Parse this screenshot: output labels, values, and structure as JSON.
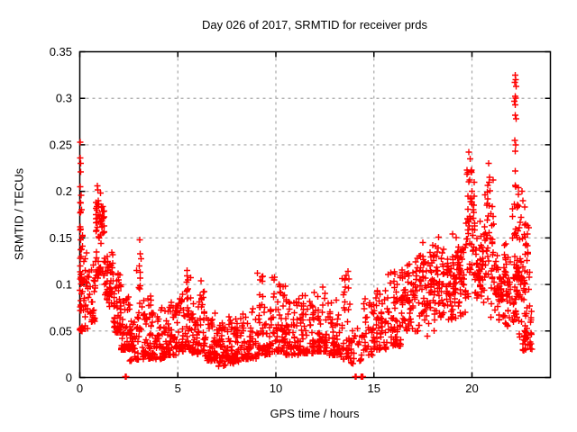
{
  "chart_data": {
    "type": "scatter",
    "title": "Day 026 of 2017, SRMTID for receiver prds",
    "xlabel": "GPS time / hours",
    "ylabel": "SRMTID / TECUs",
    "xlim": [
      0,
      24
    ],
    "ylim": [
      0,
      0.35
    ],
    "xticks": [
      0,
      5,
      10,
      15,
      20
    ],
    "xtick_labels": [
      "0",
      "5",
      "10",
      "15",
      "20"
    ],
    "yticks": [
      0,
      0.05,
      0.1,
      0.15,
      0.2,
      0.25,
      0.3,
      0.35
    ],
    "ytick_labels": [
      "0",
      "0.05",
      "0.1",
      "0.15",
      "0.2",
      "0.25",
      "0.3",
      "0.35"
    ],
    "grid": true,
    "legend_position": "none",
    "marker": {
      "shape": "plus",
      "color": "#ff0000",
      "size": 7
    },
    "colors": {
      "axis": "#000000",
      "grid": "#a8a8a8",
      "background": "#ffffff",
      "text": "#000000"
    },
    "series_name": "SRMTID",
    "point_summary_bins": [
      [
        0.0,
        0.15,
        25,
        0.045,
        0.21,
        "full"
      ],
      [
        0.0,
        0.12,
        14,
        0.05,
        0.115,
        "low"
      ],
      [
        0.15,
        0.45,
        22,
        0.05,
        0.145,
        "low"
      ],
      [
        0.45,
        0.8,
        28,
        0.06,
        0.155,
        "low"
      ],
      [
        0.8,
        1.25,
        42,
        0.13,
        0.205,
        "mid"
      ],
      [
        0.8,
        1.25,
        22,
        0.095,
        0.135,
        "mid"
      ],
      [
        1.25,
        1.7,
        45,
        0.07,
        0.138,
        "mid"
      ],
      [
        1.7,
        2.1,
        48,
        0.048,
        0.112,
        "low"
      ],
      [
        2.1,
        2.55,
        45,
        0.03,
        0.088,
        "low"
      ],
      [
        2.55,
        3.0,
        42,
        0.018,
        0.065,
        "low"
      ],
      [
        3.0,
        3.14,
        10,
        0.04,
        0.148,
        "full"
      ],
      [
        3.14,
        3.7,
        52,
        0.02,
        0.092,
        "low"
      ],
      [
        3.7,
        4.35,
        58,
        0.02,
        0.078,
        "low"
      ],
      [
        4.35,
        5.0,
        60,
        0.024,
        0.082,
        "low"
      ],
      [
        5.0,
        5.3,
        28,
        0.028,
        0.09,
        "low"
      ],
      [
        5.3,
        5.65,
        34,
        0.03,
        0.112,
        "low"
      ],
      [
        5.65,
        6.05,
        38,
        0.025,
        0.08,
        "low"
      ],
      [
        6.05,
        6.35,
        28,
        0.028,
        0.1,
        "low"
      ],
      [
        6.35,
        7.0,
        55,
        0.018,
        0.07,
        "low"
      ],
      [
        7.0,
        7.6,
        50,
        0.012,
        0.06,
        "low"
      ],
      [
        7.6,
        8.2,
        52,
        0.015,
        0.066,
        "low"
      ],
      [
        8.2,
        9.0,
        62,
        0.02,
        0.08,
        "low"
      ],
      [
        9.0,
        9.45,
        38,
        0.024,
        0.112,
        "low"
      ],
      [
        9.45,
        9.8,
        28,
        0.025,
        0.08,
        "low"
      ],
      [
        9.8,
        10.5,
        58,
        0.028,
        0.108,
        "low"
      ],
      [
        10.5,
        11.2,
        58,
        0.024,
        0.085,
        "low"
      ],
      [
        11.2,
        11.9,
        58,
        0.026,
        0.09,
        "low"
      ],
      [
        11.9,
        12.6,
        58,
        0.028,
        0.098,
        "low"
      ],
      [
        12.6,
        13.3,
        52,
        0.024,
        0.085,
        "low"
      ],
      [
        13.3,
        13.8,
        38,
        0.02,
        0.112,
        "low"
      ],
      [
        13.8,
        14.35,
        22,
        0.015,
        0.06,
        "low"
      ],
      [
        14.35,
        15.0,
        38,
        0.024,
        0.092,
        "low"
      ],
      [
        15.0,
        15.7,
        52,
        0.03,
        0.1,
        "low"
      ],
      [
        15.7,
        16.4,
        56,
        0.034,
        0.115,
        "low"
      ],
      [
        16.4,
        17.1,
        58,
        0.04,
        0.122,
        "mid"
      ],
      [
        17.1,
        17.8,
        58,
        0.04,
        0.145,
        "mid"
      ],
      [
        17.8,
        18.5,
        62,
        0.045,
        0.15,
        "mid"
      ],
      [
        18.5,
        19.2,
        62,
        0.05,
        0.155,
        "mid"
      ],
      [
        19.2,
        19.7,
        48,
        0.06,
        0.16,
        "mid"
      ],
      [
        19.7,
        20.15,
        52,
        0.075,
        0.235,
        "mid"
      ],
      [
        20.15,
        20.6,
        48,
        0.06,
        0.17,
        "mid"
      ],
      [
        20.6,
        21.1,
        48,
        0.06,
        0.225,
        "mid"
      ],
      [
        21.1,
        21.6,
        44,
        0.05,
        0.14,
        "mid"
      ],
      [
        21.6,
        22.0,
        38,
        0.04,
        0.15,
        "mid"
      ],
      [
        22.05,
        22.4,
        30,
        0.055,
        0.21,
        "full"
      ],
      [
        22.1,
        22.35,
        26,
        0.05,
        0.16,
        "mid"
      ],
      [
        22.4,
        22.95,
        55,
        0.035,
        0.185,
        "mid"
      ],
      [
        22.55,
        22.85,
        18,
        0.028,
        0.06,
        "low"
      ],
      [
        22.95,
        23.1,
        8,
        0.03,
        0.075,
        "low"
      ]
    ],
    "feature_points": [
      [
        0.02,
        0.253
      ],
      [
        0.03,
        0.236
      ],
      [
        0.05,
        0.23
      ],
      [
        0.04,
        0.221
      ],
      [
        0.02,
        0.205
      ],
      [
        0.06,
        0.196
      ],
      [
        0.03,
        0.188
      ],
      [
        0.05,
        0.178
      ],
      [
        0.02,
        0.162
      ],
      [
        0.04,
        0.148
      ],
      [
        0.03,
        0.128
      ],
      [
        0.05,
        0.108
      ],
      [
        0.9,
        0.206
      ],
      [
        1.05,
        0.198
      ],
      [
        0.95,
        0.19
      ],
      [
        2.33,
        0.001
      ],
      [
        2.37,
        0.001
      ],
      [
        3.05,
        0.148
      ],
      [
        3.08,
        0.133
      ],
      [
        3.04,
        0.12
      ],
      [
        3.09,
        0.107
      ],
      [
        3.06,
        0.095
      ],
      [
        2.9,
        0.115
      ],
      [
        5.48,
        0.115
      ],
      [
        5.52,
        0.105
      ],
      [
        6.18,
        0.104
      ],
      [
        9.06,
        0.112
      ],
      [
        9.2,
        0.105
      ],
      [
        9.9,
        0.105
      ],
      [
        10.15,
        0.1
      ],
      [
        12.4,
        0.097
      ],
      [
        13.68,
        0.114
      ],
      [
        13.73,
        0.106
      ],
      [
        14.05,
        0.001
      ],
      [
        14.1,
        0.001
      ],
      [
        14.35,
        0.001
      ],
      [
        14.4,
        0.001
      ],
      [
        14.44,
        0.001
      ],
      [
        16.8,
        0.122
      ],
      [
        17.5,
        0.145
      ],
      [
        18.3,
        0.151
      ],
      [
        19.0,
        0.154
      ],
      [
        19.85,
        0.242
      ],
      [
        19.9,
        0.235
      ],
      [
        19.95,
        0.222
      ],
      [
        19.88,
        0.212
      ],
      [
        20.0,
        0.2
      ],
      [
        19.92,
        0.192
      ],
      [
        20.85,
        0.23
      ],
      [
        20.9,
        0.215
      ],
      [
        20.8,
        0.192
      ],
      [
        20.75,
        0.185
      ],
      [
        22.2,
        0.325
      ],
      [
        22.23,
        0.32
      ],
      [
        22.18,
        0.317
      ],
      [
        22.25,
        0.313
      ],
      [
        22.2,
        0.302
      ],
      [
        22.24,
        0.3
      ],
      [
        22.17,
        0.297
      ],
      [
        22.21,
        0.293
      ],
      [
        22.2,
        0.282
      ],
      [
        22.25,
        0.278
      ],
      [
        22.19,
        0.255
      ],
      [
        22.23,
        0.25
      ],
      [
        22.21,
        0.243
      ],
      [
        22.2,
        0.222
      ],
      [
        22.22,
        0.205
      ],
      [
        22.55,
        0.2
      ],
      [
        22.6,
        0.19
      ],
      [
        22.7,
        0.183
      ],
      [
        22.5,
        0.172
      ],
      [
        23.0,
        0.062
      ],
      [
        23.02,
        0.048
      ],
      [
        22.95,
        0.035
      ]
    ]
  }
}
